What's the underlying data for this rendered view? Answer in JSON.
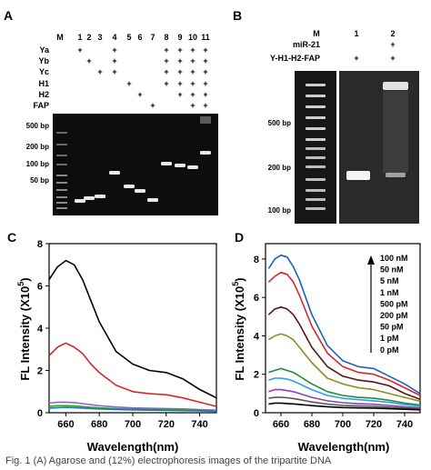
{
  "panels": {
    "A": {
      "label": "A",
      "lane_header_m": "M",
      "lane_numbers": [
        "1",
        "2",
        "3",
        "4",
        "5",
        "6",
        "7",
        "8",
        "9",
        "10",
        "11"
      ],
      "row_labels": [
        "Ya",
        "Yb",
        "Yc",
        "H1",
        "H2",
        "FAP"
      ],
      "plus": "+",
      "matrix": [
        [
          1,
          0,
          0,
          1,
          0,
          0,
          0,
          1,
          1,
          1,
          1
        ],
        [
          0,
          1,
          0,
          1,
          0,
          0,
          0,
          1,
          1,
          1,
          1
        ],
        [
          0,
          0,
          1,
          1,
          0,
          0,
          0,
          1,
          1,
          1,
          1
        ],
        [
          0,
          0,
          0,
          0,
          1,
          0,
          0,
          1,
          1,
          1,
          1
        ],
        [
          0,
          0,
          0,
          0,
          0,
          1,
          0,
          0,
          1,
          1,
          1
        ],
        [
          0,
          0,
          0,
          0,
          0,
          0,
          1,
          0,
          0,
          1,
          1
        ]
      ],
      "markers": [
        "500 bp",
        "200 bp",
        "100 bp",
        "50 bp"
      ]
    },
    "B": {
      "label": "B",
      "lane_header_m": "M",
      "lane_numbers": [
        "1",
        "2"
      ],
      "row_labels": [
        "miR-21",
        "Y-H1-H2-FAP"
      ],
      "plus": "+",
      "matrix": [
        [
          0,
          1
        ],
        [
          1,
          1
        ]
      ],
      "markers": [
        "500 bp",
        "200 bp",
        "100 bp"
      ]
    },
    "C": {
      "label": "C",
      "xlabel": "Wavelength(nm)",
      "ylabel_main": "FL Intensity (X10",
      "ylabel_sup": "5",
      "ylabel_close": ")"
    },
    "D": {
      "label": "D",
      "xlabel": "Wavelength(nm)",
      "ylabel_main": "FL Intensity (X10",
      "ylabel_sup": "5",
      "ylabel_close": ")",
      "legend": [
        "100 nM",
        "50 nM",
        "5 nM",
        "1 nM",
        "500 pM",
        "200 pM",
        "50 pM",
        "1 pM",
        "0 pM"
      ]
    }
  },
  "caption": "Fig. 1   (A) Agarose and (12%) electrophoresis images of the tripartite DNA",
  "chart_data": [
    {
      "type": "line",
      "panel": "C",
      "xlabel": "Wavelength(nm)",
      "ylabel": "FL Intensity (X10^5)",
      "xlim": [
        650,
        750
      ],
      "ylim": [
        0,
        8
      ],
      "xticks": [
        660,
        680,
        700,
        720,
        740
      ],
      "yticks": [
        0,
        2,
        4,
        6,
        8
      ],
      "x": [
        650,
        655,
        660,
        665,
        670,
        675,
        680,
        690,
        700,
        710,
        720,
        730,
        740,
        750
      ],
      "series": [
        {
          "color": "#000000",
          "values": [
            6.3,
            6.9,
            7.2,
            7.0,
            6.3,
            5.3,
            4.3,
            2.9,
            2.3,
            2.0,
            1.9,
            1.6,
            1.1,
            0.7
          ]
        },
        {
          "color": "#d62728",
          "values": [
            2.7,
            3.1,
            3.3,
            3.1,
            2.8,
            2.3,
            1.9,
            1.3,
            1.0,
            0.9,
            0.85,
            0.7,
            0.5,
            0.3
          ]
        },
        {
          "color": "#9467bd",
          "values": [
            0.45,
            0.5,
            0.5,
            0.48,
            0.43,
            0.38,
            0.33,
            0.27,
            0.23,
            0.21,
            0.2,
            0.18,
            0.15,
            0.12
          ]
        },
        {
          "color": "#2ca02c",
          "values": [
            0.3,
            0.33,
            0.33,
            0.32,
            0.29,
            0.26,
            0.23,
            0.19,
            0.17,
            0.15,
            0.14,
            0.13,
            0.11,
            0.09
          ]
        },
        {
          "color": "#1f77b4",
          "values": [
            0.22,
            0.24,
            0.25,
            0.24,
            0.22,
            0.2,
            0.18,
            0.15,
            0.13,
            0.12,
            0.11,
            0.1,
            0.09,
            0.07
          ]
        }
      ]
    },
    {
      "type": "line",
      "panel": "D",
      "xlabel": "Wavelength(nm)",
      "ylabel": "FL Intensity (X10^5)",
      "xlim": [
        650,
        750
      ],
      "ylim": [
        0,
        8.8
      ],
      "xticks": [
        660,
        680,
        700,
        720,
        740
      ],
      "yticks": [
        0,
        2,
        4,
        6,
        8
      ],
      "x": [
        652,
        656,
        660,
        664,
        668,
        672,
        676,
        680,
        690,
        700,
        710,
        720,
        730,
        740,
        750
      ],
      "series": [
        {
          "name": "100 nM",
          "color": "#1f5fbf",
          "values": [
            7.5,
            8.0,
            8.2,
            8.1,
            7.6,
            6.9,
            6.0,
            5.1,
            3.5,
            2.7,
            2.4,
            2.3,
            1.9,
            1.5,
            1.0
          ]
        },
        {
          "name": "50 nM",
          "color": "#d62728",
          "values": [
            6.8,
            7.1,
            7.3,
            7.2,
            6.8,
            6.1,
            5.3,
            4.5,
            3.1,
            2.4,
            2.1,
            2.0,
            1.7,
            1.3,
            0.9
          ]
        },
        {
          "name": "5 nM",
          "color": "#5a1414",
          "values": [
            5.1,
            5.4,
            5.5,
            5.4,
            5.1,
            4.6,
            4.0,
            3.4,
            2.4,
            1.9,
            1.7,
            1.6,
            1.4,
            1.0,
            0.7
          ]
        },
        {
          "name": "1 nM",
          "color": "#8c8c1e",
          "values": [
            3.8,
            4.0,
            4.1,
            4.0,
            3.8,
            3.4,
            3.0,
            2.6,
            1.8,
            1.5,
            1.3,
            1.2,
            1.0,
            0.8,
            0.6
          ]
        },
        {
          "name": "500 pM",
          "color": "#1f8c3c",
          "values": [
            2.1,
            2.2,
            2.3,
            2.2,
            2.1,
            1.9,
            1.7,
            1.5,
            1.1,
            0.9,
            0.8,
            0.75,
            0.65,
            0.5,
            0.4
          ]
        },
        {
          "name": "200 pM",
          "color": "#2a9df4",
          "values": [
            1.7,
            1.8,
            1.8,
            1.75,
            1.65,
            1.5,
            1.35,
            1.2,
            0.9,
            0.75,
            0.68,
            0.62,
            0.54,
            0.43,
            0.34
          ]
        },
        {
          "name": "50 pM",
          "color": "#8e44ad",
          "values": [
            1.1,
            1.2,
            1.2,
            1.15,
            1.1,
            1.0,
            0.9,
            0.8,
            0.62,
            0.52,
            0.47,
            0.44,
            0.38,
            0.31,
            0.25
          ]
        },
        {
          "name": "1 pM",
          "color": "#555555",
          "values": [
            0.75,
            0.8,
            0.8,
            0.78,
            0.74,
            0.68,
            0.62,
            0.56,
            0.45,
            0.38,
            0.35,
            0.33,
            0.29,
            0.24,
            0.2
          ]
        },
        {
          "name": "0 pM",
          "color": "#000000",
          "values": [
            0.45,
            0.5,
            0.5,
            0.48,
            0.46,
            0.43,
            0.4,
            0.37,
            0.31,
            0.27,
            0.25,
            0.24,
            0.21,
            0.18,
            0.15
          ]
        }
      ]
    }
  ]
}
